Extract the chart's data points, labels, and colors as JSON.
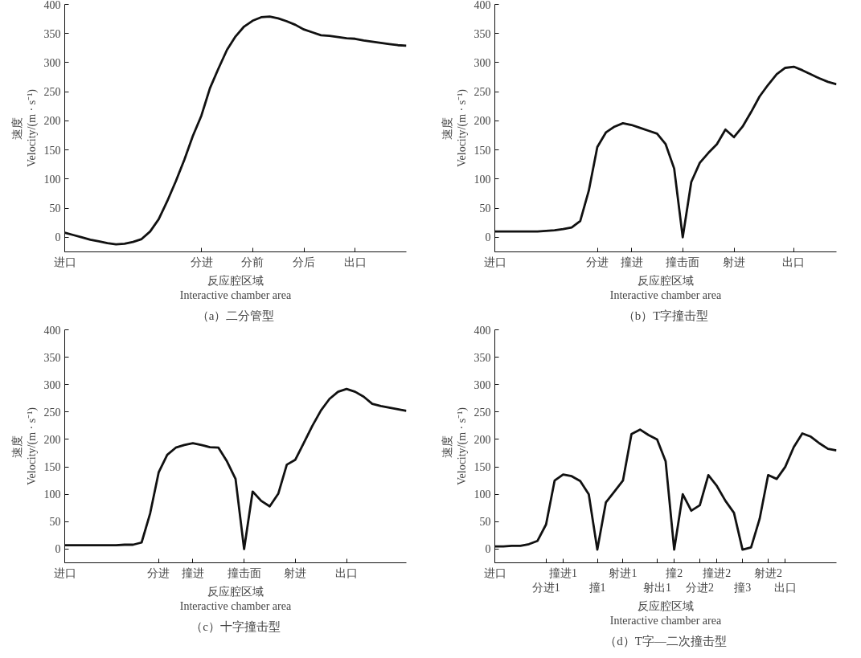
{
  "chart_data": [
    {
      "type": "line",
      "title": "（a）二分管型",
      "xlabel": "反应腔区域\nInteractive chamber area",
      "ylabel": "速度\nVelocity/(m · s⁻¹)",
      "ylim": [
        -25,
        400
      ],
      "yticks": [
        0,
        50,
        100,
        150,
        200,
        250,
        300,
        350,
        400
      ],
      "categories": [
        "进口",
        null,
        null,
        null,
        null,
        null,
        null,
        null,
        null,
        null,
        null,
        null,
        null,
        null,
        null,
        null,
        "分进",
        null,
        null,
        null,
        null,
        null,
        "分前",
        null,
        null,
        null,
        null,
        null,
        "分后",
        null,
        null,
        null,
        null,
        null,
        "出口",
        null,
        null,
        null,
        null,
        null,
        null
      ],
      "grid": false,
      "marker": "none",
      "line_style": "solid",
      "series": [
        {
          "color": "#111111",
          "values": [
            8,
            4,
            0,
            -4,
            -7,
            -10,
            -12,
            -11,
            -8,
            -3,
            10,
            31,
            62,
            96,
            133,
            174,
            209,
            256,
            290,
            322,
            345,
            362,
            372,
            378,
            379,
            376,
            371,
            365,
            357,
            352,
            347,
            346,
            344,
            342,
            341,
            338,
            336,
            334,
            332,
            330,
            329
          ]
        }
      ]
    },
    {
      "type": "line",
      "title": "（b）T字撞击型",
      "xlabel": "反应腔区域\nInteractive chamber area",
      "ylabel": "速度\nVelocity/(m · s⁻¹)",
      "ylim": [
        -25,
        400
      ],
      "yticks": [
        0,
        50,
        100,
        150,
        200,
        250,
        300,
        350,
        400
      ],
      "categories": [
        "进口",
        null,
        null,
        null,
        null,
        null,
        null,
        null,
        null,
        null,
        null,
        null,
        "分进",
        null,
        null,
        null,
        "撞进",
        null,
        null,
        null,
        null,
        null,
        "撞击面",
        null,
        null,
        null,
        null,
        null,
        "射进",
        null,
        null,
        null,
        null,
        null,
        null,
        "出口",
        null,
        null,
        null,
        null,
        null
      ],
      "grid": false,
      "marker": "none",
      "line_style": "solid",
      "series": [
        {
          "color": "#111111",
          "values": [
            10,
            10,
            10,
            10,
            10,
            10,
            11,
            12,
            14,
            17,
            28,
            80,
            155,
            180,
            190,
            196,
            193,
            188,
            183,
            178,
            160,
            118,
            0,
            95,
            128,
            145,
            160,
            185,
            172,
            190,
            215,
            242,
            262,
            280,
            291,
            293,
            287,
            280,
            273,
            267,
            263
          ]
        }
      ]
    },
    {
      "type": "line",
      "title": "（c）十字撞击型",
      "xlabel": "反应腔区域\nInteractive chamber area",
      "ylabel": "速度\nVelocity/(m · s⁻¹)",
      "ylim": [
        -25,
        400
      ],
      "yticks": [
        0,
        50,
        100,
        150,
        200,
        250,
        300,
        350,
        400
      ],
      "categories": [
        "进口",
        null,
        null,
        null,
        null,
        null,
        null,
        null,
        null,
        null,
        null,
        "分进",
        null,
        null,
        null,
        "撞进",
        null,
        null,
        null,
        null,
        null,
        "撞击面",
        null,
        null,
        null,
        null,
        null,
        "射进",
        null,
        null,
        null,
        null,
        null,
        "出口",
        null,
        null,
        null,
        null,
        null,
        null,
        null
      ],
      "grid": false,
      "marker": "none",
      "line_style": "solid",
      "series": [
        {
          "color": "#111111",
          "values": [
            7,
            7,
            7,
            7,
            7,
            7,
            7,
            8,
            8,
            12,
            65,
            140,
            172,
            185,
            190,
            193,
            190,
            186,
            185,
            160,
            128,
            0,
            105,
            88,
            78,
            101,
            154,
            163,
            194,
            225,
            253,
            274,
            287,
            292,
            287,
            278,
            265,
            261,
            258,
            255,
            252
          ]
        }
      ]
    },
    {
      "type": "line",
      "title": "（d）T字—二次撞击型",
      "xlabel": "反应腔区域\nInteractive chamber area",
      "ylabel": "速度\nVelocity/(m · s⁻¹)",
      "ylim": [
        -25,
        400
      ],
      "yticks": [
        0,
        50,
        100,
        150,
        200,
        250,
        300,
        350,
        400
      ],
      "categories": [
        "进口",
        null,
        null,
        null,
        null,
        null,
        "分进1",
        null,
        "撞进1",
        null,
        null,
        null,
        "撞1",
        null,
        null,
        "射进1",
        null,
        null,
        null,
        "射出1",
        null,
        "撞2",
        null,
        null,
        "分进2",
        null,
        "撞进2",
        null,
        null,
        "撞3",
        null,
        null,
        "射进2",
        null,
        "出口",
        null,
        null,
        null,
        null,
        null,
        null
      ],
      "grid": false,
      "marker": "none",
      "line_style": "solid",
      "series": [
        {
          "color": "#111111",
          "values": [
            5,
            5,
            6,
            6,
            9,
            15,
            45,
            125,
            136,
            133,
            124,
            100,
            -1,
            85,
            105,
            125,
            210,
            218,
            208,
            200,
            160,
            -1,
            100,
            70,
            80,
            135,
            115,
            88,
            66,
            -1,
            3,
            55,
            135,
            128,
            150,
            186,
            211,
            205,
            193,
            183,
            180
          ]
        }
      ]
    }
  ]
}
